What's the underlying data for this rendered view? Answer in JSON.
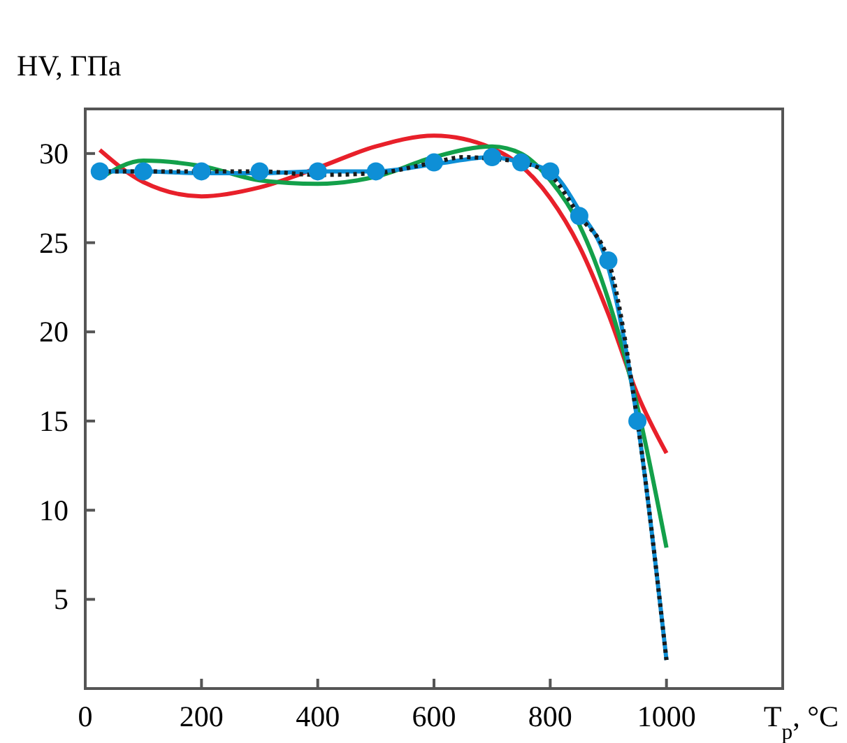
{
  "chart_data": {
    "type": "line",
    "ylabel": "HV, ГПа",
    "xlabel": "T$_{р}$, °C",
    "xlim": [
      0,
      1200
    ],
    "ylim": [
      0,
      32.5
    ],
    "xticks": [
      {
        "value": 0,
        "label": "0"
      },
      200,
      400,
      600,
      800,
      1000
    ],
    "yticks": [
      {
        "value": 0,
        "label": null
      },
      5,
      10,
      15,
      20,
      25,
      30
    ],
    "grid": false,
    "series": [
      {
        "color": "#e8202a",
        "marker": "none",
        "line_style": "solid",
        "x": [
          25,
          100,
          200,
          300,
          400,
          500,
          600,
          700,
          750,
          800,
          850,
          900,
          950,
          1000
        ],
        "values": [
          30.2,
          28.4,
          27.6,
          28.1,
          29.2,
          30.4,
          31.0,
          30.3,
          29.3,
          27.5,
          24.8,
          21,
          16.5,
          13.2
        ]
      },
      {
        "color": "#13a04a",
        "marker": "none",
        "line_style": "solid",
        "x": [
          25,
          100,
          200,
          300,
          400,
          500,
          600,
          700,
          750,
          800,
          850,
          900,
          950,
          1000
        ],
        "values": [
          28.6,
          29.6,
          29.3,
          28.5,
          28.3,
          28.7,
          29.8,
          30.4,
          30,
          28.5,
          26,
          21.8,
          15.8,
          7.9
        ]
      },
      {
        "color": "#0e8fd6",
        "marker": "none",
        "line_style": "solid",
        "x": [
          25,
          100,
          200,
          300,
          400,
          500,
          600,
          700,
          750,
          800,
          850,
          900,
          950,
          1000
        ],
        "values": [
          29,
          29,
          28.9,
          28.9,
          29,
          29,
          29.4,
          29.8,
          29.5,
          29,
          26.8,
          23.6,
          15,
          1.6
        ]
      },
      {
        "color": "#1a1a1a",
        "marker": "none",
        "line_style": "dotted",
        "x": [
          25,
          100,
          200,
          300,
          400,
          500,
          600,
          650,
          700,
          750,
          800,
          850,
          900,
          950,
          1000
        ],
        "values": [
          29,
          29,
          29,
          29,
          28.8,
          28.9,
          29.5,
          29.8,
          29.7,
          29.5,
          28.8,
          26.5,
          24,
          15,
          1.6
        ]
      },
      {
        "type": "scatter",
        "color": "#0e8fd6",
        "marker": "circle",
        "x": [
          25,
          100,
          200,
          300,
          400,
          500,
          600,
          700,
          750,
          800,
          850,
          900,
          950
        ],
        "values": [
          29,
          29,
          29,
          29,
          29,
          29,
          29.5,
          29.8,
          29.5,
          29,
          26.5,
          24,
          15
        ]
      }
    ]
  }
}
